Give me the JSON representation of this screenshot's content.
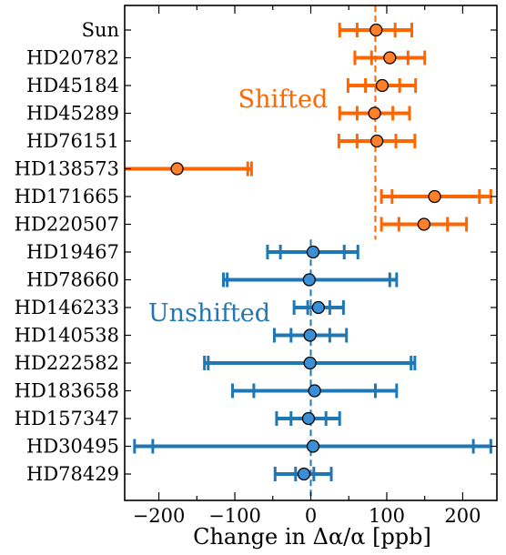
{
  "chart_data": {
    "type": "scatter",
    "title": "",
    "xlabel": "Change in Δα/α [ppb]",
    "ylabel": "",
    "xlim": [
      -245,
      245
    ],
    "xticks": [
      -200,
      -100,
      0,
      100,
      200
    ],
    "xtick_labels": [
      "−200",
      "−100",
      "0",
      "100",
      "200"
    ],
    "grid": false,
    "colors": {
      "shifted": "#ff6600",
      "shifted_marker": "#ff7f2a",
      "unshifted": "#1f77b4",
      "unshifted_marker": "#3a8fd6",
      "ref_shifted": "#ff6600",
      "ref_unshifted": "#1f77b4"
    },
    "groups": [
      {
        "label": "Shifted",
        "color_key": "shifted",
        "reference_x": 85,
        "stars": [
          {
            "name": "Sun",
            "x": 86,
            "inner": [
              61,
              111
            ],
            "outer": [
              38,
              133
            ]
          },
          {
            "name": "HD20782",
            "x": 104,
            "inner": [
              80,
              128
            ],
            "outer": [
              58,
              150
            ]
          },
          {
            "name": "HD45184",
            "x": 94,
            "inner": [
              72,
              117
            ],
            "outer": [
              49,
              138
            ]
          },
          {
            "name": "HD45289",
            "x": 84,
            "inner": [
              61,
              108
            ],
            "outer": [
              38,
              130
            ]
          },
          {
            "name": "HD76151",
            "x": 87,
            "inner": [
              61,
              112
            ],
            "outer": [
              37,
              137
            ]
          },
          {
            "name": "HD138573",
            "x": -176,
            "inner": [
              -245,
              -83
            ],
            "outer": [
              -245,
              -78
            ]
          },
          {
            "name": "HD171665",
            "x": 163,
            "inner": [
              107,
              222
            ],
            "outer": [
              93,
              237
            ]
          },
          {
            "name": "HD220507",
            "x": 149,
            "inner": [
              116,
              180
            ],
            "outer": [
              93,
              205
            ]
          }
        ]
      },
      {
        "label": "Unshifted",
        "color_key": "unshifted",
        "reference_x": 0,
        "stars": [
          {
            "name": "HD19467",
            "x": 3,
            "inner": [
              -40,
              44
            ],
            "outer": [
              -57,
              62
            ]
          },
          {
            "name": "HD78660",
            "x": -2,
            "inner": [
              -110,
              104
            ],
            "outer": [
              -115,
              113
            ]
          },
          {
            "name": "HD146233",
            "x": 10,
            "inner": [
              -4,
              25
            ],
            "outer": [
              -22,
              43
            ]
          },
          {
            "name": "HD140538",
            "x": -1,
            "inner": [
              -26,
              25
            ],
            "outer": [
              -48,
              47
            ]
          },
          {
            "name": "HD222582",
            "x": -1,
            "inner": [
              -135,
              132
            ],
            "outer": [
              -140,
              137
            ]
          },
          {
            "name": "HD183658",
            "x": 5,
            "inner": [
              -75,
              85
            ],
            "outer": [
              -103,
              113
            ]
          },
          {
            "name": "HD157347",
            "x": -3,
            "inner": [
              -26,
              20
            ],
            "outer": [
              -45,
              38
            ]
          },
          {
            "name": "HD30495",
            "x": 3,
            "inner": [
              -208,
              214
            ],
            "outer": [
              -232,
              237
            ]
          },
          {
            "name": "HD78429",
            "x": -9,
            "inner": [
              -20,
              4
            ],
            "outer": [
              -47,
              27
            ]
          }
        ]
      }
    ]
  }
}
